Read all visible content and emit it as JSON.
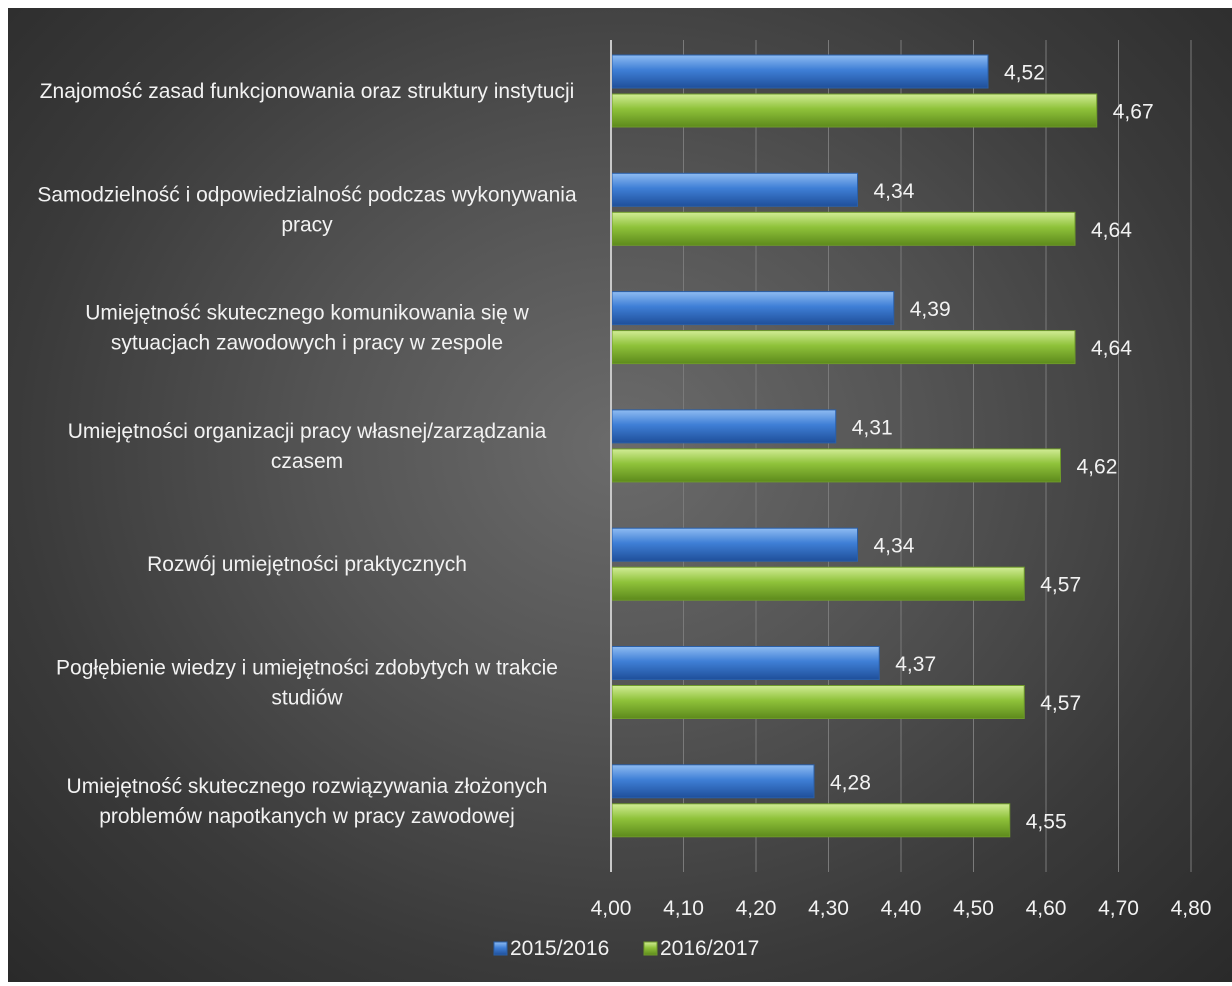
{
  "chart_data": {
    "type": "bar",
    "orientation": "horizontal",
    "categories": [
      [
        "Znajomość zasad funkcjonowania oraz struktury instytucji"
      ],
      [
        "Samodzielność i odpowiedzialność podczas wykonywania",
        "pracy"
      ],
      [
        "Umiejętność skutecznego komunikowania się w",
        "sytuacjach zawodowych i pracy w zespole"
      ],
      [
        "Umiejętności organizacji pracy własnej/zarządzania",
        "czasem"
      ],
      [
        "Rozwój umiejętności praktycznych"
      ],
      [
        "Pogłębienie wiedzy i umiejętności zdobytych w trakcie",
        "studiów"
      ],
      [
        "Umiejętność skutecznego rozwiązywania złożonych",
        "problemów napotkanych w pracy zawodowej"
      ]
    ],
    "series": [
      {
        "name": "2015/2016",
        "values": [
          4.52,
          4.34,
          4.39,
          4.31,
          4.34,
          4.37,
          4.28
        ],
        "labels": [
          "4,52",
          "4,34",
          "4,39",
          "4,31",
          "4,34",
          "4,37",
          "4,28"
        ],
        "color": "#3f7fd6"
      },
      {
        "name": "2016/2017",
        "values": [
          4.67,
          4.64,
          4.64,
          4.62,
          4.57,
          4.57,
          4.55
        ],
        "labels": [
          "4,67",
          "4,64",
          "4,64",
          "4,62",
          "4,57",
          "4,57",
          "4,55"
        ],
        "color": "#8fc23a"
      }
    ],
    "xlim": [
      4.0,
      4.8
    ],
    "xticks": [
      "4,00",
      "4,10",
      "4,20",
      "4,30",
      "4,40",
      "4,50",
      "4,60",
      "4,70",
      "4,80"
    ],
    "grid": true,
    "legend": "bottom",
    "title": "",
    "xlabel": "",
    "ylabel": ""
  }
}
